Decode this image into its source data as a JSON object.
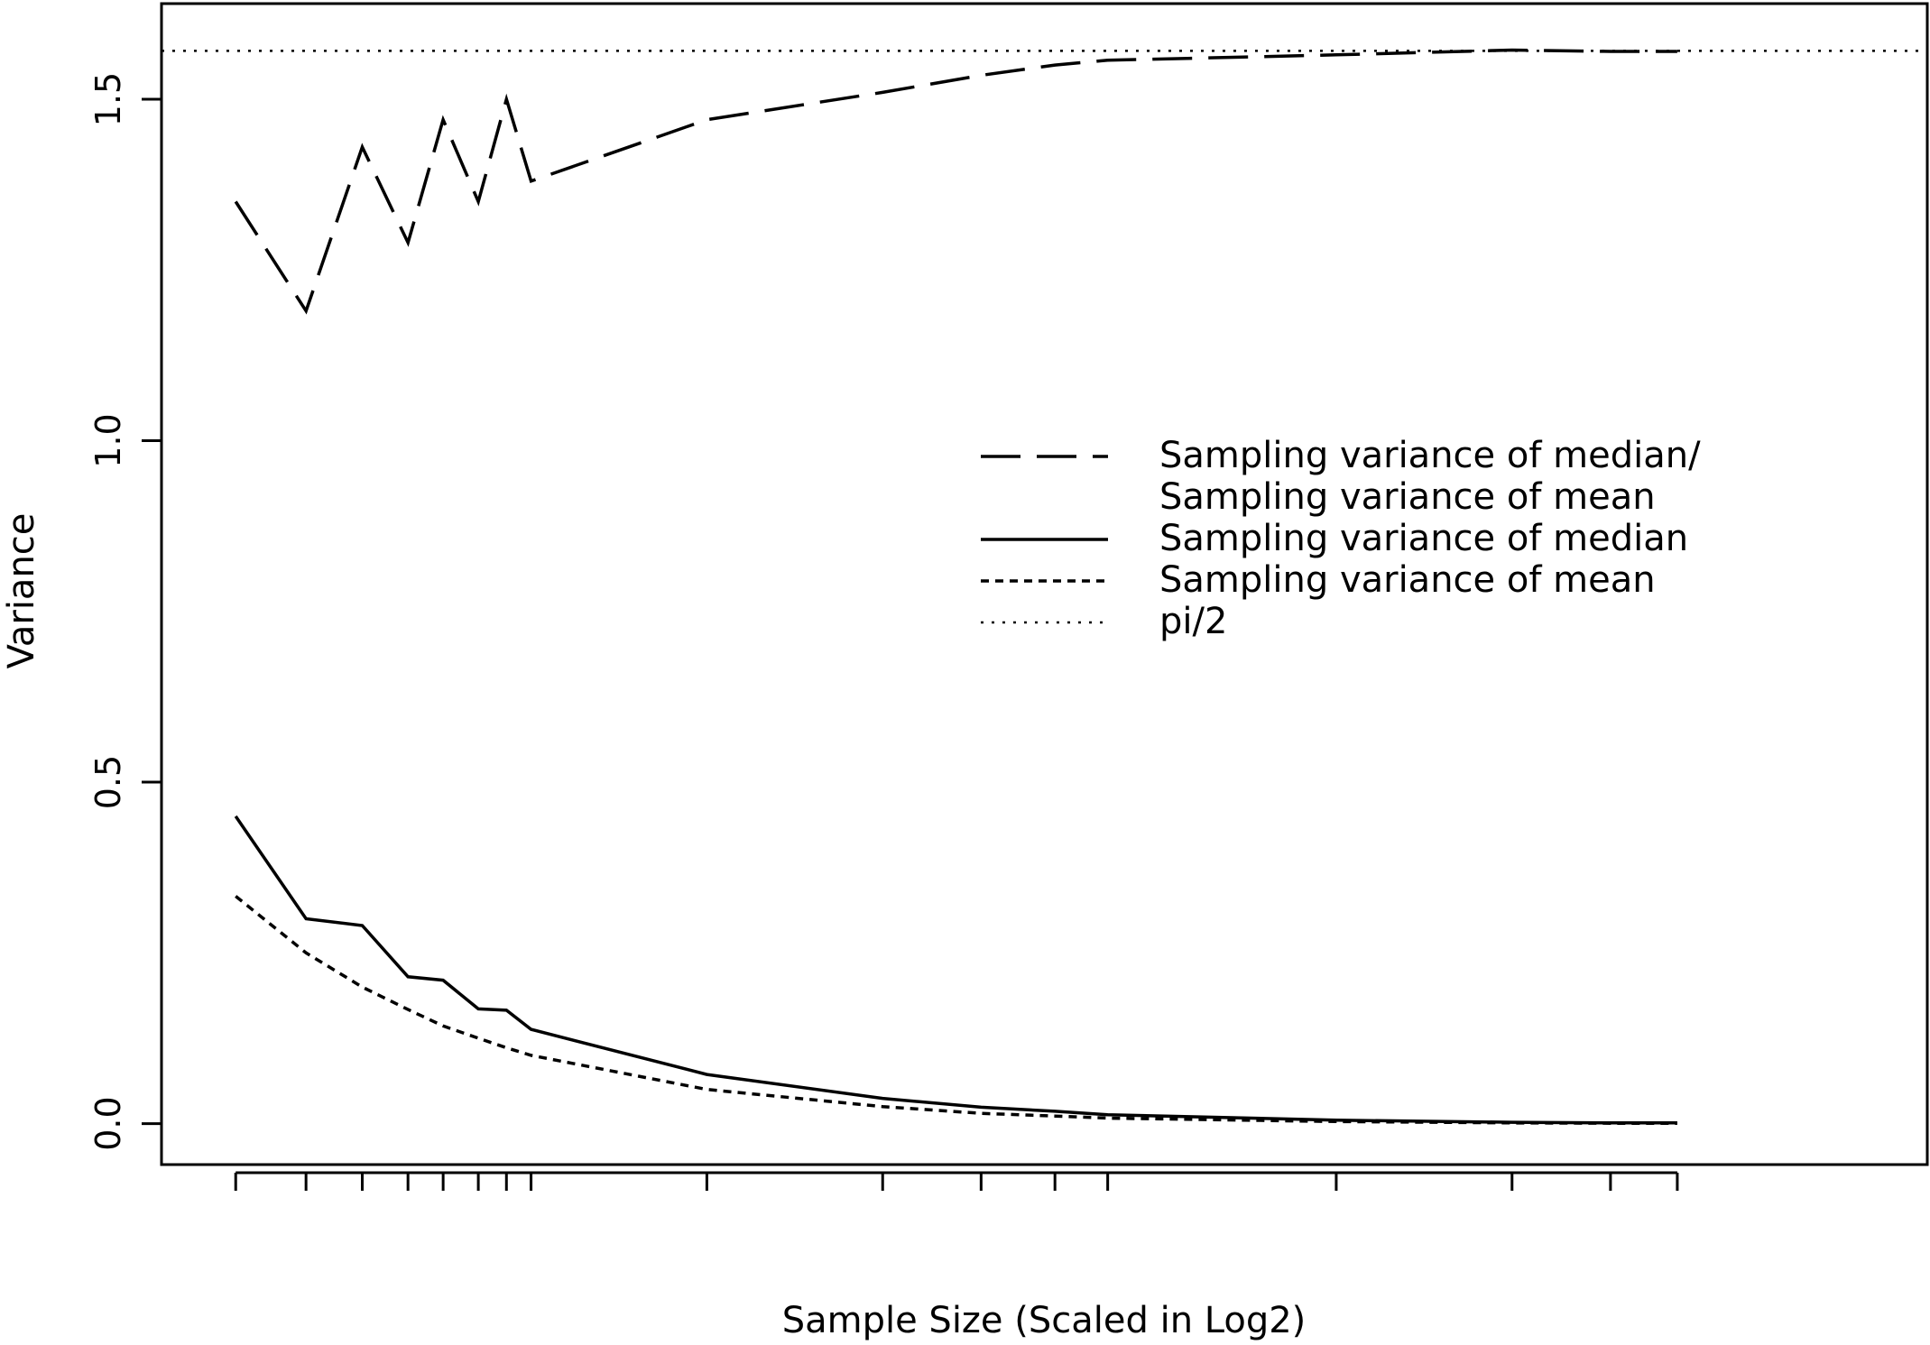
{
  "chart_data": {
    "type": "line",
    "xlabel": "Sample Size (Scaled in Log2)",
    "ylabel": "Variance",
    "ylim": [
      -0.06,
      1.64
    ],
    "yticks": [
      0.0,
      0.5,
      1.0,
      1.5
    ],
    "ytick_labels": [
      "0.0",
      "0.5",
      "1.0",
      "1.5"
    ],
    "xlim": [
      -2.11,
      48.11
    ],
    "x_tick_positions": [
      0,
      2,
      3.6,
      4.9,
      5.9,
      6.9,
      7.7,
      8.4,
      13.4,
      18.4,
      21.2,
      23.3,
      24.8,
      31.3,
      36.3,
      39.1,
      41
    ],
    "grid": false,
    "legend_position": "center-right",
    "series": [
      {
        "name": "Sampling variance of median/\nSampling variance of mean",
        "legend_lines": [
          "Sampling variance of median/",
          "Sampling variance of mean"
        ],
        "dash": "long-dash",
        "x": [
          0,
          2,
          3.6,
          4.9,
          5.9,
          6.9,
          7.7,
          8.4,
          13.4,
          18.4,
          21.2,
          23.3,
          24.8,
          31.3,
          36.3,
          39.1,
          41
        ],
        "y": [
          1.35,
          1.19,
          1.43,
          1.29,
          1.47,
          1.35,
          1.5,
          1.38,
          1.47,
          1.51,
          1.535,
          1.55,
          1.557,
          1.565,
          1.572,
          1.57,
          1.57
        ]
      },
      {
        "name": "Sampling variance of median",
        "legend_lines": [
          "Sampling variance of median"
        ],
        "dash": "solid",
        "x": [
          0,
          2,
          3.6,
          4.9,
          5.9,
          6.9,
          7.7,
          8.4,
          13.4,
          18.4,
          21.2,
          23.3,
          24.8,
          31.3,
          36.3,
          39.1,
          41
        ],
        "y": [
          0.45,
          0.3,
          0.29,
          0.215,
          0.21,
          0.168,
          0.166,
          0.138,
          0.072,
          0.037,
          0.024,
          0.018,
          0.013,
          0.005,
          0.002,
          0.001,
          0.001
        ]
      },
      {
        "name": "Sampling variance of mean",
        "legend_lines": [
          "Sampling variance of mean"
        ],
        "dash": "short-dash",
        "x": [
          0,
          2,
          3.6,
          4.9,
          5.9,
          6.9,
          7.7,
          8.4,
          13.4,
          18.4,
          21.2,
          23.3,
          24.8,
          31.3,
          36.3,
          39.1,
          41
        ],
        "y": [
          0.333,
          0.25,
          0.2,
          0.167,
          0.143,
          0.125,
          0.111,
          0.1,
          0.05,
          0.025,
          0.015,
          0.011,
          0.008,
          0.003,
          0.001,
          0.0005,
          0.0003
        ]
      },
      {
        "name": "pi/2",
        "legend_lines": [
          "pi/2"
        ],
        "dash": "dotted",
        "reference_value": 1.5708
      }
    ]
  }
}
